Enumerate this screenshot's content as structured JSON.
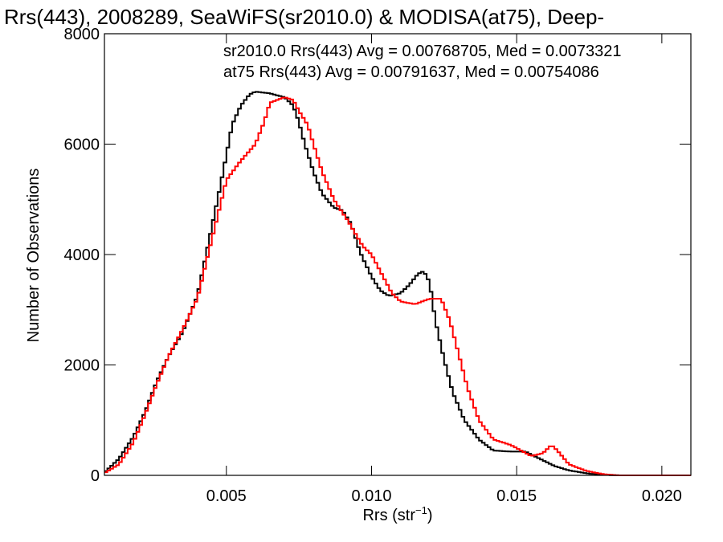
{
  "chart_data": {
    "type": "line",
    "title": "Rrs(443), 2008289, SeaWiFS(sr2010.0) & MODISA(at75), Deep-",
    "xlabel": "Rrs (str",
    "xlabel_superscript": "−1",
    "xlabel_suffix": ")",
    "ylabel": "Number of Observations",
    "xlim": [
      0.0008,
      0.021
    ],
    "ylim": [
      0,
      8000
    ],
    "xticks": [
      0.005,
      0.01,
      0.015,
      0.02
    ],
    "xtick_labels": [
      "0.005",
      "0.010",
      "0.015",
      "0.020"
    ],
    "yticks": [
      0,
      2000,
      4000,
      6000,
      8000
    ],
    "ytick_labels": [
      "0",
      "2000",
      "4000",
      "6000",
      "8000"
    ],
    "grid": false,
    "step": true,
    "stats": [
      {
        "text": "sr2010.0 Rrs(443) Avg = 0.00768705, Med = 0.0073321",
        "color": "#000000"
      },
      {
        "text": "at75 Rrs(443) Avg = 0.00791637, Med = 0.00754086",
        "color": "#ff0000"
      }
    ],
    "series": [
      {
        "color": "#000000",
        "points": [
          [
            0.0008,
            50
          ],
          [
            0.0013,
            300
          ],
          [
            0.0018,
            700
          ],
          [
            0.0022,
            1150
          ],
          [
            0.0026,
            1700
          ],
          [
            0.003,
            2150
          ],
          [
            0.0035,
            2600
          ],
          [
            0.004,
            3250
          ],
          [
            0.0043,
            4000
          ],
          [
            0.0047,
            5000
          ],
          [
            0.005,
            5800
          ],
          [
            0.0052,
            6350
          ],
          [
            0.0055,
            6700
          ],
          [
            0.0058,
            6900
          ],
          [
            0.006,
            6950
          ],
          [
            0.0065,
            6920
          ],
          [
            0.007,
            6850
          ],
          [
            0.0073,
            6700
          ],
          [
            0.0075,
            6400
          ],
          [
            0.0077,
            6000
          ],
          [
            0.008,
            5500
          ],
          [
            0.0083,
            5100
          ],
          [
            0.0087,
            4850
          ],
          [
            0.009,
            4800
          ],
          [
            0.0093,
            4550
          ],
          [
            0.0096,
            4050
          ],
          [
            0.01,
            3600
          ],
          [
            0.0103,
            3350
          ],
          [
            0.0106,
            3250
          ],
          [
            0.011,
            3300
          ],
          [
            0.0113,
            3450
          ],
          [
            0.0116,
            3650
          ],
          [
            0.0118,
            3700
          ],
          [
            0.012,
            3500
          ],
          [
            0.0122,
            2800
          ],
          [
            0.0125,
            2100
          ],
          [
            0.0128,
            1500
          ],
          [
            0.0132,
            1000
          ],
          [
            0.0137,
            650
          ],
          [
            0.0142,
            450
          ],
          [
            0.0148,
            430
          ],
          [
            0.0153,
            430
          ],
          [
            0.0158,
            300
          ],
          [
            0.0163,
            170
          ],
          [
            0.0168,
            90
          ],
          [
            0.0175,
            30
          ],
          [
            0.018,
            10
          ],
          [
            0.0185,
            0
          ],
          [
            0.021,
            0
          ]
        ]
      },
      {
        "color": "#ff0000",
        "points": [
          [
            0.0008,
            40
          ],
          [
            0.0013,
            200
          ],
          [
            0.0018,
            600
          ],
          [
            0.0022,
            1100
          ],
          [
            0.0026,
            1650
          ],
          [
            0.003,
            2150
          ],
          [
            0.0035,
            2650
          ],
          [
            0.004,
            3200
          ],
          [
            0.0043,
            3850
          ],
          [
            0.0047,
            4700
          ],
          [
            0.005,
            5350
          ],
          [
            0.0055,
            5700
          ],
          [
            0.006,
            6000
          ],
          [
            0.0063,
            6400
          ],
          [
            0.0065,
            6750
          ],
          [
            0.007,
            6850
          ],
          [
            0.0073,
            6800
          ],
          [
            0.0075,
            6600
          ],
          [
            0.0078,
            6350
          ],
          [
            0.008,
            6000
          ],
          [
            0.0083,
            5500
          ],
          [
            0.0087,
            5000
          ],
          [
            0.0092,
            4600
          ],
          [
            0.0097,
            4150
          ],
          [
            0.01,
            4000
          ],
          [
            0.0103,
            3700
          ],
          [
            0.0107,
            3300
          ],
          [
            0.011,
            3150
          ],
          [
            0.0115,
            3100
          ],
          [
            0.012,
            3200
          ],
          [
            0.0124,
            3200
          ],
          [
            0.0127,
            2800
          ],
          [
            0.013,
            2200
          ],
          [
            0.0133,
            1600
          ],
          [
            0.0137,
            1000
          ],
          [
            0.0142,
            650
          ],
          [
            0.0148,
            550
          ],
          [
            0.0155,
            350
          ],
          [
            0.0159,
            400
          ],
          [
            0.0162,
            550
          ],
          [
            0.0164,
            450
          ],
          [
            0.0168,
            200
          ],
          [
            0.0174,
            80
          ],
          [
            0.018,
            20
          ],
          [
            0.0185,
            0
          ],
          [
            0.021,
            0
          ]
        ]
      }
    ]
  }
}
